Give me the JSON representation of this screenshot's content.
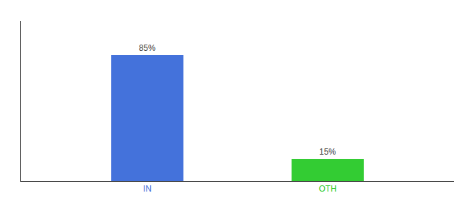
{
  "chart_data": {
    "type": "bar",
    "categories": [
      "IN",
      "OTH"
    ],
    "values": [
      85,
      15
    ],
    "value_labels": [
      "85%",
      "15%"
    ],
    "colors": [
      "#4472db",
      "#33cc33"
    ],
    "data_labels": true,
    "tick_labels": "x",
    "ylim": [
      0,
      108
    ],
    "grid": false
  }
}
